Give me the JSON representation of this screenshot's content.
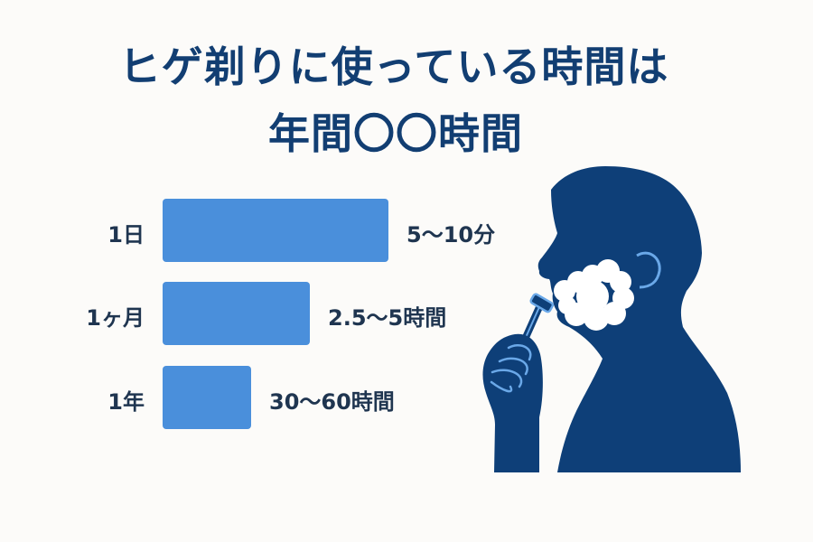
{
  "title_lines": [
    "ヒゲ剃りに使っている時間は",
    "年間〇〇時間"
  ],
  "chart_data": {
    "type": "bar",
    "orientation": "horizontal",
    "categories": [
      "1日",
      "1ヶ月",
      "1年"
    ],
    "value_labels": [
      "5〜10分",
      "2.5〜5時間",
      "30〜60時間"
    ],
    "relative_bar_level": [
      1.0,
      0.65,
      0.39
    ],
    "grid": false
  },
  "colors": {
    "title": "#123e72",
    "bar": "#4a8fdb",
    "silhouette": "#0e3f78",
    "accent": "#6aa8e8",
    "foam": "#ffffff"
  },
  "illustration": "man-shaving-silhouette-icon"
}
